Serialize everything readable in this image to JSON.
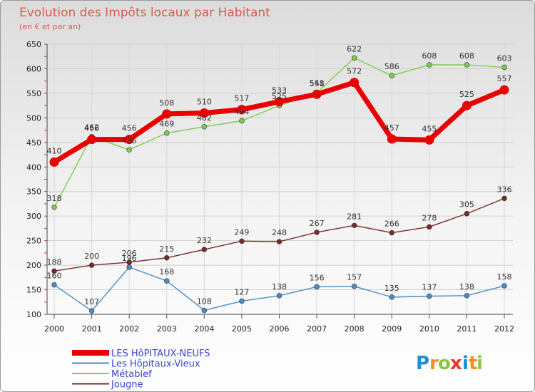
{
  "chart_data": {
    "type": "line",
    "title": "Evolution des Impôts locaux par Habitant",
    "subtitle": "(en € et par an)",
    "xlabel": "",
    "ylabel": "",
    "ylim": [
      100,
      650
    ],
    "yticks": [
      100,
      150,
      200,
      250,
      300,
      350,
      400,
      450,
      500,
      550,
      600,
      650
    ],
    "categories": [
      "2000",
      "2001",
      "2002",
      "2003",
      "2004",
      "2005",
      "2006",
      "2007",
      "2008",
      "2009",
      "2010",
      "2011",
      "2012"
    ],
    "grid": true,
    "legend_position": "bottom-left",
    "series": [
      {
        "name": "Les Hôpitaux-Vieux",
        "color": "#4a8cc8",
        "values": [
          160,
          107,
          196,
          168,
          108,
          127,
          138,
          156,
          157,
          135,
          137,
          138,
          158
        ]
      },
      {
        "name": "Jougne",
        "color": "#7a2a2a",
        "values": [
          188,
          200,
          206,
          215,
          232,
          249,
          248,
          267,
          281,
          266,
          278,
          305,
          336
        ]
      },
      {
        "name": "Métabief",
        "color": "#7dcc4e",
        "values": [
          318,
          462,
          435,
          469,
          482,
          494,
          525,
          551,
          622,
          586,
          608,
          608,
          603
        ]
      },
      {
        "name": "LES HôPITAUX-NEUFS",
        "color": "#e80000",
        "values": [
          410,
          456,
          456,
          508,
          510,
          517,
          533,
          548,
          572,
          457,
          455,
          525,
          557
        ]
      }
    ],
    "legend": [
      {
        "name": "LES HôPITAUX-NEUFS",
        "color": "#e80000"
      },
      {
        "name": "Les Hôpitaux-Vieux",
        "color": "#4a8cc8"
      },
      {
        "name": "Métabief",
        "color": "#7dcc4e"
      },
      {
        "name": "Jougne",
        "color": "#7a2a2a"
      }
    ]
  },
  "logo": {
    "letters": [
      "P",
      "r",
      "o",
      "x",
      "i",
      "t",
      "i"
    ],
    "colors": [
      "#1a8fd6",
      "#ff8c1a",
      "#8cc63f",
      "#e8342c",
      "#1a8fd6",
      "#ff8c1a",
      "#8cc63f"
    ]
  }
}
